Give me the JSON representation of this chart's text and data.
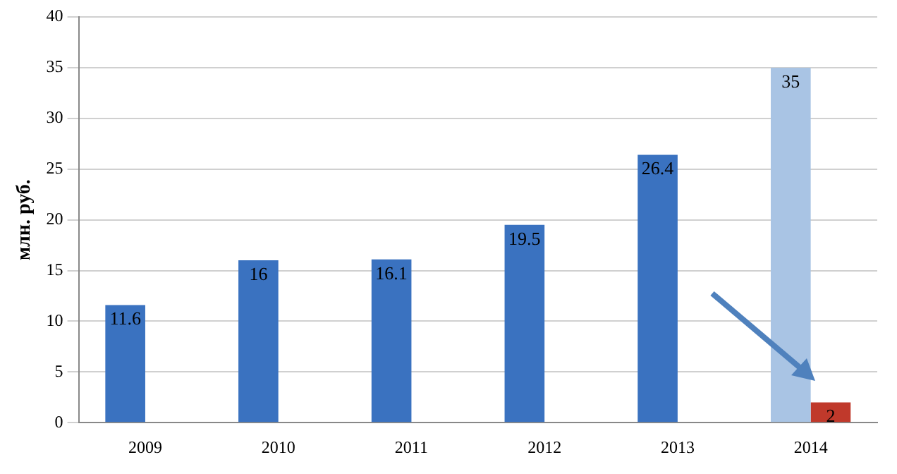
{
  "chart_data": {
    "type": "bar",
    "ylabel": "млн. руб.",
    "categories": [
      "2009",
      "2010",
      "2011",
      "2012",
      "2013",
      "2014"
    ],
    "series": [
      {
        "colors": [
          "#3a72c0",
          "#3a72c0",
          "#3a72c0",
          "#3a72c0",
          "#3a72c0",
          "#a9c4e4"
        ],
        "values": [
          11.6,
          16,
          16.1,
          19.5,
          26.4,
          35
        ]
      },
      {
        "color": "#c0392b",
        "values": [
          null,
          null,
          null,
          null,
          null,
          2
        ]
      }
    ],
    "ylim": [
      0,
      40
    ],
    "yticks": [
      0,
      5,
      10,
      15,
      20,
      25,
      30,
      35,
      40
    ],
    "grid": "y",
    "data_labels": true
  }
}
